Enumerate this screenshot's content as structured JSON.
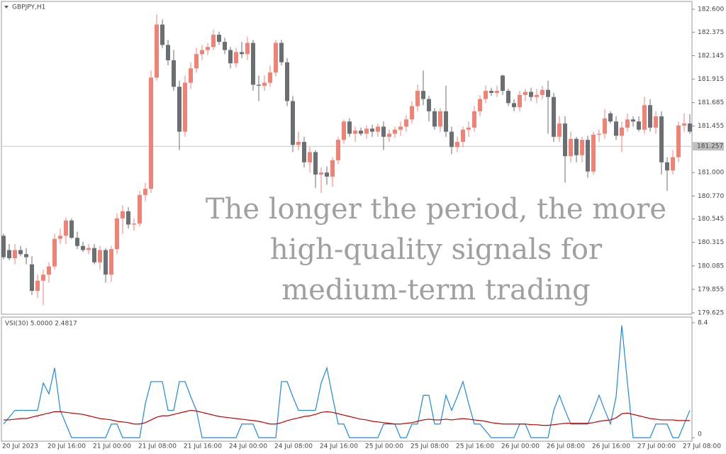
{
  "chart_data": [
    {
      "type": "candlestick",
      "title": "GBPJPY,H1",
      "categories": [
        "20 Jul 2023",
        null,
        null,
        null,
        null,
        null,
        null,
        null,
        "20 Jul 16:00",
        null,
        null,
        null,
        null,
        null,
        null,
        null,
        "21 Jul 00:00",
        null,
        null,
        null,
        null,
        null,
        null,
        null,
        "21 Jul 08:00",
        null,
        null,
        null,
        null,
        null,
        null,
        null,
        "21 Jul 16:00",
        null,
        null,
        null,
        null,
        null,
        null,
        null,
        "24 Jul 00:00",
        null,
        null,
        null,
        null,
        null,
        null,
        null,
        "24 Jul 08:00",
        null,
        null,
        null,
        null,
        null,
        null,
        null,
        "24 Jul 16:00",
        null,
        null,
        null,
        null,
        null,
        null,
        null,
        "25 Jul 00:00",
        null,
        null,
        null,
        null,
        null,
        null,
        null,
        "25 Jul 08:00",
        null,
        null,
        null,
        null,
        null,
        null,
        null,
        "25 Jul 16:00",
        null,
        null,
        null,
        null,
        null,
        null,
        null,
        "26 Jul 00:00",
        null,
        null,
        null,
        null,
        null,
        null,
        null,
        "26 Jul 08:00",
        null,
        null,
        null,
        null,
        null,
        null,
        null,
        "26 Jul 16:00",
        null,
        null,
        null,
        null,
        null,
        null,
        null,
        "27 Jul 00:00",
        null,
        null,
        null,
        null,
        null,
        null,
        null,
        "27 Jul 08:00",
        null
      ],
      "open": [
        180.38,
        180.24,
        180.16,
        180.24,
        180.2,
        180.1,
        179.84,
        179.94,
        180.0,
        180.08,
        180.35,
        180.38,
        180.53,
        180.36,
        180.28,
        180.24,
        180.26,
        180.12,
        180.24,
        180.0,
        180.25,
        180.55,
        180.62,
        180.49,
        180.5,
        180.78,
        180.84,
        181.93,
        182.45,
        182.25,
        182.1,
        181.84,
        181.4,
        181.88,
        182.02,
        182.16,
        182.2,
        182.23,
        182.35,
        182.28,
        182.2,
        182.07,
        182.18,
        182.16,
        182.27,
        181.86,
        181.85,
        181.88,
        181.98,
        182.27,
        182.08,
        181.7,
        181.27,
        181.3,
        181.1,
        181.2,
        180.98,
        181.0,
        180.96,
        181.12,
        181.32,
        181.5,
        181.38,
        181.41,
        181.38,
        181.43,
        181.4,
        181.45,
        181.35,
        181.38,
        181.42,
        181.45,
        181.52,
        181.65,
        181.8,
        181.72,
        181.6,
        181.45,
        181.6,
        181.4,
        181.25,
        181.3,
        181.42,
        181.44,
        181.6,
        181.72,
        181.8,
        181.78,
        181.95,
        181.8,
        181.68,
        181.64,
        181.76,
        181.79,
        181.74,
        181.76,
        181.81,
        181.74,
        181.35,
        181.48,
        181.16,
        181.33,
        181.17,
        181.32,
        181.01,
        181.37,
        181.38,
        181.58,
        181.5,
        181.36,
        181.44,
        181.52,
        181.5,
        181.42,
        181.66,
        181.44,
        181.55,
        181.1,
        181.02,
        181.15,
        181.46,
        181.48
      ],
      "high": [
        180.4,
        180.3,
        180.3,
        180.28,
        180.26,
        180.18,
        180.0,
        180.05,
        180.12,
        180.4,
        180.45,
        180.56,
        180.55,
        180.42,
        180.32,
        180.3,
        180.3,
        180.28,
        180.26,
        180.28,
        180.6,
        180.68,
        180.66,
        180.55,
        180.82,
        180.9,
        182.0,
        182.55,
        182.5,
        182.3,
        182.2,
        181.9,
        181.95,
        182.08,
        182.22,
        182.25,
        182.27,
        182.4,
        182.38,
        182.32,
        182.23,
        182.22,
        182.28,
        182.33,
        182.3,
        181.95,
        181.95,
        182.05,
        182.3,
        182.3,
        182.12,
        181.75,
        181.4,
        181.35,
        181.25,
        181.22,
        181.05,
        181.06,
        181.15,
        181.35,
        181.52,
        181.53,
        181.45,
        181.44,
        181.46,
        181.47,
        181.48,
        181.5,
        181.42,
        181.45,
        181.5,
        181.56,
        181.7,
        181.86,
        182.0,
        181.75,
        181.63,
        181.63,
        181.85,
        181.45,
        181.35,
        181.45,
        181.5,
        181.65,
        181.76,
        181.85,
        181.83,
        181.85,
        181.96,
        181.82,
        181.72,
        181.8,
        181.82,
        181.83,
        181.82,
        181.85,
        181.9,
        181.78,
        181.55,
        181.55,
        181.4,
        181.35,
        181.35,
        181.36,
        181.4,
        181.42,
        181.62,
        181.6,
        181.55,
        181.5,
        181.58,
        181.55,
        181.55,
        181.74,
        181.72,
        181.6,
        181.6,
        181.15,
        181.22,
        181.5,
        181.58,
        181.57
      ],
      "low": [
        180.15,
        180.14,
        180.1,
        180.18,
        180.1,
        179.8,
        179.77,
        179.7,
        179.92,
        180.05,
        180.3,
        180.3,
        180.35,
        180.25,
        180.22,
        180.2,
        180.1,
        180.05,
        179.92,
        179.93,
        180.2,
        180.4,
        180.45,
        180.43,
        180.47,
        180.72,
        180.8,
        181.9,
        182.22,
        182.05,
        181.8,
        181.22,
        181.35,
        181.82,
        181.98,
        182.1,
        182.15,
        182.2,
        182.25,
        182.16,
        182.02,
        182.03,
        182.12,
        182.1,
        181.8,
        181.7,
        181.8,
        181.84,
        181.94,
        182.05,
        181.65,
        181.2,
        181.22,
        181.05,
        181.0,
        180.85,
        180.8,
        180.88,
        180.86,
        181.08,
        181.28,
        181.35,
        181.3,
        181.36,
        181.33,
        181.35,
        181.35,
        181.22,
        181.3,
        181.34,
        181.36,
        181.4,
        181.48,
        181.6,
        181.66,
        181.5,
        181.42,
        181.4,
        181.35,
        181.18,
        181.2,
        181.25,
        181.35,
        181.4,
        181.55,
        181.68,
        181.75,
        181.74,
        181.76,
        181.65,
        181.6,
        181.6,
        181.7,
        181.7,
        181.68,
        181.72,
        181.38,
        181.3,
        181.3,
        180.9,
        181.1,
        181.1,
        181.1,
        180.95,
        180.98,
        181.3,
        181.33,
        181.48,
        181.32,
        181.2,
        181.4,
        181.45,
        181.4,
        181.38,
        181.4,
        181.38,
        180.98,
        180.82,
        180.98,
        181.1,
        181.4,
        181.38
      ],
      "close": [
        180.17,
        180.16,
        180.24,
        180.2,
        180.17,
        179.84,
        179.94,
        180.0,
        180.08,
        180.35,
        180.38,
        180.53,
        180.36,
        180.28,
        180.24,
        180.26,
        180.12,
        180.24,
        180.0,
        180.25,
        180.55,
        180.62,
        180.49,
        180.5,
        180.78,
        180.84,
        181.93,
        182.45,
        182.25,
        182.1,
        181.84,
        181.4,
        181.88,
        182.02,
        182.16,
        182.2,
        182.23,
        182.35,
        182.28,
        182.2,
        182.07,
        182.18,
        182.16,
        182.27,
        181.86,
        181.85,
        181.88,
        181.98,
        182.27,
        182.08,
        181.7,
        181.27,
        181.3,
        181.1,
        181.2,
        180.98,
        181.0,
        180.96,
        181.12,
        181.32,
        181.5,
        181.38,
        181.41,
        181.38,
        181.43,
        181.4,
        181.45,
        181.35,
        181.38,
        181.42,
        181.45,
        181.52,
        181.65,
        181.8,
        181.72,
        181.6,
        181.45,
        181.6,
        181.4,
        181.25,
        181.3,
        181.42,
        181.44,
        181.6,
        181.72,
        181.8,
        181.78,
        181.8,
        181.8,
        181.68,
        181.64,
        181.76,
        181.79,
        181.74,
        181.76,
        181.81,
        181.74,
        181.35,
        181.48,
        181.16,
        181.33,
        181.17,
        181.32,
        181.01,
        181.37,
        181.38,
        181.53,
        181.5,
        181.36,
        181.44,
        181.52,
        181.5,
        181.42,
        181.66,
        181.44,
        181.55,
        181.1,
        181.02,
        181.15,
        181.46,
        181.48,
        181.4
      ],
      "up_color": "#ef8274",
      "down_color": "#6b6e73",
      "ylim": [
        179.625,
        182.6
      ],
      "yticks": [
        {
          "value": 182.6,
          "label": "182.600"
        },
        182.375,
        182.145,
        181.915,
        181.685,
        181.455,
        {
          "value": 181,
          "label": "181.000"
        },
        {
          "value": 180.77,
          "label": "180.770"
        },
        180.545,
        180.315,
        180.085,
        179.855,
        179.625
      ],
      "last_price": 181.257
    },
    {
      "type": "line",
      "title": "VSI(30) 5.0000 2.4817",
      "series": [
        {
          "color": "#1e88e5",
          "values": [
            1.0,
            1.5,
            2.0,
            2.0,
            2.0,
            2.0,
            2.0,
            4.0,
            3.2,
            5.1,
            2.0,
            1.0,
            0,
            0,
            0,
            0,
            0,
            0,
            0,
            1.0,
            1.0,
            0,
            0,
            0,
            0,
            2.5,
            4.1,
            4.1,
            4.1,
            2.0,
            2.0,
            4.1,
            4.1,
            3.0,
            2.0,
            0,
            0,
            0,
            0,
            0,
            0,
            0,
            1.0,
            1.0,
            1.0,
            0,
            0,
            0,
            0,
            4.1,
            4.1,
            3.0,
            2.0,
            2.0,
            2.0,
            2.0,
            4.0,
            5.1,
            3.0,
            1.0,
            1.0,
            0,
            0,
            0,
            0,
            0,
            0,
            1.0,
            1.0,
            1.0,
            0,
            0,
            1.0,
            1.0,
            3.1,
            3.1,
            1.0,
            1.0,
            3.1,
            2.0,
            3.0,
            4.1,
            2.5,
            1.0,
            1.0,
            0.5,
            0,
            0,
            0,
            0,
            0,
            1.0,
            1.0,
            0,
            0,
            0,
            0,
            2.0,
            3.1,
            2.0,
            1.0,
            1.0,
            1.0,
            1.0,
            2.0,
            3.1,
            2.0,
            1.0,
            3.0,
            8.2,
            4.0,
            0,
            0,
            0,
            0,
            1.0,
            1.0,
            1.0,
            0,
            0,
            1.0,
            2.0
          ]
        },
        {
          "color": "#c00000",
          "values": [
            1.3,
            1.3,
            1.35,
            1.4,
            1.4,
            1.5,
            1.6,
            1.7,
            1.8,
            1.9,
            1.9,
            1.85,
            1.8,
            1.75,
            1.7,
            1.6,
            1.5,
            1.4,
            1.35,
            1.3,
            1.2,
            1.15,
            1.1,
            1.0,
            1.0,
            1.1,
            1.3,
            1.5,
            1.6,
            1.6,
            1.7,
            1.8,
            1.9,
            2.0,
            1.95,
            1.85,
            1.75,
            1.65,
            1.55,
            1.5,
            1.45,
            1.4,
            1.35,
            1.3,
            1.25,
            1.2,
            1.1,
            1.0,
            1.0,
            1.1,
            1.25,
            1.35,
            1.45,
            1.55,
            1.6,
            1.7,
            1.85,
            1.9,
            1.85,
            1.75,
            1.65,
            1.55,
            1.45,
            1.35,
            1.3,
            1.2,
            1.15,
            1.1,
            1.05,
            1.0,
            1.0,
            1.05,
            1.1,
            1.2,
            1.3,
            1.35,
            1.3,
            1.3,
            1.35,
            1.3,
            1.35,
            1.4,
            1.35,
            1.3,
            1.25,
            1.2,
            1.1,
            1.05,
            1.0,
            1.0,
            1.0,
            1.0,
            1.0,
            0.95,
            0.95,
            0.9,
            0.9,
            0.95,
            1.0,
            1.05,
            1.05,
            1.05,
            1.05,
            1.05,
            1.1,
            1.2,
            1.25,
            1.3,
            1.45,
            1.75,
            1.8,
            1.7,
            1.6,
            1.5,
            1.4,
            1.35,
            1.3,
            1.3,
            1.3,
            1.25,
            1.25,
            1.25
          ]
        }
      ],
      "ylim": [
        0,
        8.4
      ],
      "yticks": [
        8.4,
        0
      ]
    }
  ],
  "overlay": [
    "The longer the period, the more",
    "high-quality signals for",
    "medium-term trading"
  ]
}
